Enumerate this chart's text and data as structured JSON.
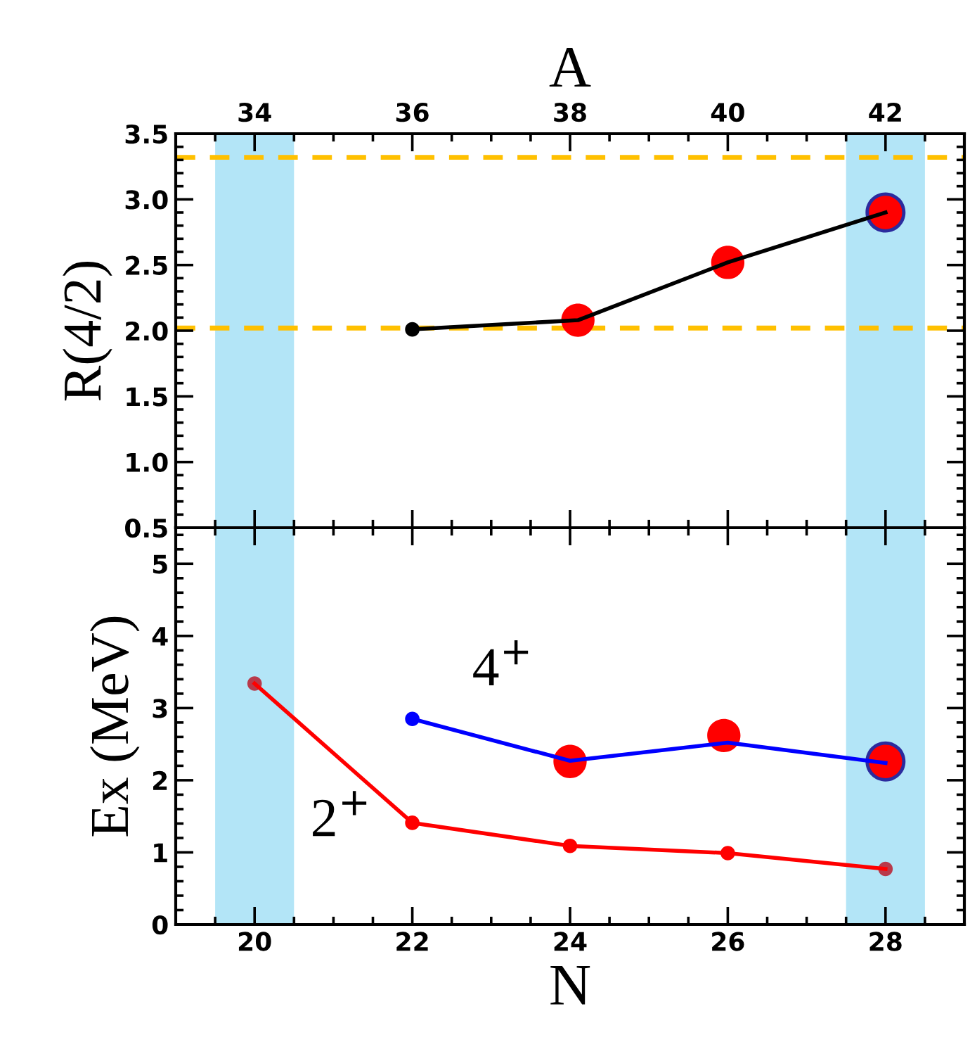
{
  "chart_data": [
    {
      "type": "line",
      "xlabel": "A",
      "ylabel": "R(4/2)",
      "xlim": [
        33,
        43
      ],
      "xticks": [
        34,
        36,
        38,
        40,
        42
      ],
      "ylim": [
        0.5,
        3.5
      ],
      "yticks": [
        0.5,
        {
          "value": 1,
          "label": "1.0"
        },
        1.5,
        {
          "value": 2,
          "label": "2.0"
        },
        2.5,
        {
          "value": 3,
          "label": "3.0"
        },
        3.5
      ],
      "grid": false,
      "marker": "circle",
      "line_style": "solid",
      "series": [
        {
          "type": "line",
          "color": "#000000",
          "x": [
            36,
            38.1,
            40,
            42
          ],
          "values": [
            2.01,
            2.08,
            2.52,
            2.9
          ]
        },
        {
          "type": "scatter",
          "color": "#2b2b9e",
          "x": [
            42
          ],
          "values": [
            2.9
          ]
        },
        {
          "type": "scatter",
          "color": "#ff0000",
          "x": [
            38.1,
            40,
            42
          ],
          "values": [
            2.08,
            2.52,
            2.9
          ]
        }
      ],
      "ref_lines": [
        {
          "axis": "y",
          "value": 3.32,
          "color": "#ffc000",
          "line_style": "dashed"
        },
        {
          "axis": "y",
          "value": 2.02,
          "color": "#ffc000",
          "line_style": "dashed"
        }
      ],
      "bands": [
        {
          "axis": "x",
          "from": 33.5,
          "to": 34.5,
          "color": "#b3e5f7"
        },
        {
          "axis": "x",
          "from": 41.5,
          "to": 42.5,
          "color": "#b3e5f7"
        }
      ]
    },
    {
      "type": "line",
      "xlabel": "N",
      "ylabel": "Ex (MeV)",
      "xlim": [
        19,
        29
      ],
      "xticks": [
        20,
        22,
        24,
        26,
        28
      ],
      "ylim": [
        0,
        5.5
      ],
      "yticks": [
        0,
        1,
        2,
        3,
        4,
        5
      ],
      "grid": false,
      "marker": "circle",
      "line_style": "solid",
      "series": [
        {
          "type": "line",
          "color": "#ff0000",
          "x": [
            20,
            22,
            24,
            26,
            28
          ],
          "values": [
            3.34,
            1.41,
            1.09,
            0.99,
            0.77
          ],
          "colors": [
            "#b83a4b",
            "#ff0000",
            "#ff0000",
            "#ff0000",
            "#b83a4b"
          ]
        },
        {
          "type": "line",
          "color": "#0000ff",
          "x": [
            22,
            24,
            26,
            28
          ],
          "values": [
            2.85,
            2.27,
            2.52,
            2.24
          ]
        },
        {
          "type": "scatter",
          "color": "#2b2b9e",
          "x": [
            28
          ],
          "values": [
            2.26
          ]
        },
        {
          "type": "scatter",
          "color": "#ff0000",
          "x": [
            24,
            25.95,
            28
          ],
          "values": [
            2.26,
            2.62,
            2.26
          ]
        }
      ],
      "annotations": [
        "4$^{+}$",
        "2$^{+}$"
      ],
      "bands": [
        {
          "axis": "x",
          "from": 19.5,
          "to": 20.5,
          "color": "#b3e5f7"
        },
        {
          "axis": "x",
          "from": 27.5,
          "to": 28.5,
          "color": "#b3e5f7"
        }
      ]
    }
  ]
}
